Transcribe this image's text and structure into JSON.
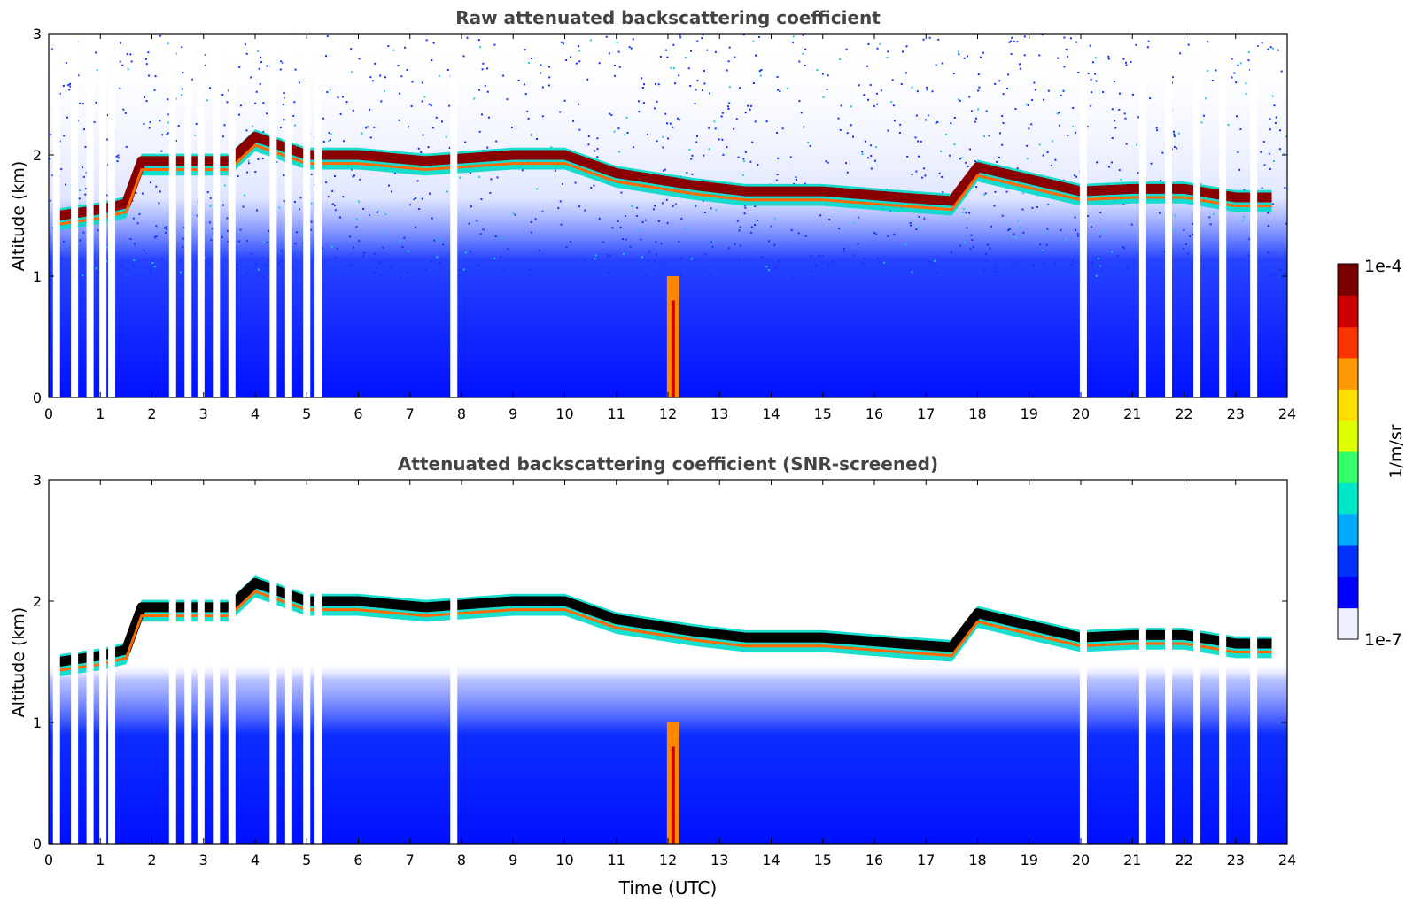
{
  "chart_data": [
    {
      "type": "heatmap",
      "title": "Raw attenuated backscattering coefficient",
      "xlabel": "",
      "ylabel": "Altitude (km)",
      "xlim": [
        0,
        24
      ],
      "ylim": [
        0,
        3
      ],
      "xticks": [
        "0",
        "1",
        "2",
        "3",
        "4",
        "5",
        "6",
        "7",
        "8",
        "9",
        "10",
        "11",
        "12",
        "13",
        "14",
        "15",
        "16",
        "17",
        "18",
        "19",
        "20",
        "21",
        "22",
        "23",
        "24"
      ],
      "yticks": [
        "0",
        "1",
        "2",
        "3"
      ],
      "data_gaps_time_utc": [
        0.15,
        0.5,
        0.8,
        1.05,
        1.22,
        2.4,
        2.7,
        2.95,
        3.25,
        3.55,
        4.35,
        4.65,
        5.0,
        5.22,
        7.85,
        20.05,
        21.2,
        21.7,
        22.25,
        22.75,
        23.35
      ],
      "cloud_layer": {
        "time_utc": [
          0.2,
          1.0,
          1.5,
          1.8,
          2.5,
          3.5,
          4.0,
          5.0,
          6.0,
          7.3,
          9.0,
          10.0,
          11.0,
          12.5,
          13.5,
          15.0,
          16.5,
          17.5,
          18.0,
          19.0,
          20.0,
          21.0,
          22.0,
          23.0,
          23.7
        ],
        "altitude_km": [
          1.5,
          1.55,
          1.6,
          1.95,
          1.95,
          1.95,
          2.15,
          2.0,
          2.0,
          1.95,
          2.0,
          2.0,
          1.85,
          1.75,
          1.7,
          1.7,
          1.65,
          1.62,
          1.9,
          1.8,
          1.7,
          1.72,
          1.72,
          1.65,
          1.65
        ]
      },
      "aerosol_plume": {
        "time_utc": 12.1,
        "altitude_km": [
          0,
          1.0
        ]
      }
    },
    {
      "type": "heatmap",
      "title": "Attenuated backscattering coefficient (SNR-screened)",
      "xlabel": "Time (UTC)",
      "ylabel": "Altitude (km)",
      "xlim": [
        0,
        24
      ],
      "ylim": [
        0,
        3
      ],
      "xticks": [
        "0",
        "1",
        "2",
        "3",
        "4",
        "5",
        "6",
        "7",
        "8",
        "9",
        "10",
        "11",
        "12",
        "13",
        "14",
        "15",
        "16",
        "17",
        "18",
        "19",
        "20",
        "21",
        "22",
        "23",
        "24"
      ],
      "yticks": [
        "0",
        "1",
        "2",
        "3"
      ],
      "data_gaps_time_utc": [
        0.15,
        0.5,
        0.8,
        1.05,
        1.22,
        2.4,
        2.7,
        2.95,
        3.25,
        3.55,
        4.35,
        4.65,
        5.0,
        5.22,
        7.85,
        20.05,
        21.2,
        21.7,
        22.25,
        22.75,
        23.35
      ],
      "cloud_layer": {
        "time_utc": [
          0.2,
          1.0,
          1.5,
          1.8,
          2.5,
          3.5,
          4.0,
          5.0,
          6.0,
          7.3,
          9.0,
          10.0,
          11.0,
          12.5,
          13.5,
          15.0,
          16.5,
          17.5,
          18.0,
          19.0,
          20.0,
          21.0,
          22.0,
          23.0,
          23.7
        ],
        "altitude_km": [
          1.5,
          1.55,
          1.6,
          1.95,
          1.95,
          1.95,
          2.15,
          2.0,
          2.0,
          1.95,
          2.0,
          2.0,
          1.85,
          1.75,
          1.7,
          1.7,
          1.65,
          1.62,
          1.9,
          1.8,
          1.7,
          1.72,
          1.72,
          1.65,
          1.65
        ]
      },
      "aerosol_plume": {
        "time_utc": 12.1,
        "altitude_km": [
          0,
          1.0
        ]
      }
    }
  ],
  "colorbar": {
    "label": "1/m/sr",
    "max_label": "1e-4",
    "min_label": "1e-7",
    "scale": "log",
    "colors": [
      "#eef0ff",
      "#0000ff",
      "#0033ff",
      "#00aaff",
      "#00e6c8",
      "#33ff66",
      "#ddff00",
      "#ffdd00",
      "#ff9900",
      "#ff3300",
      "#cc0000",
      "#7a0000"
    ]
  }
}
